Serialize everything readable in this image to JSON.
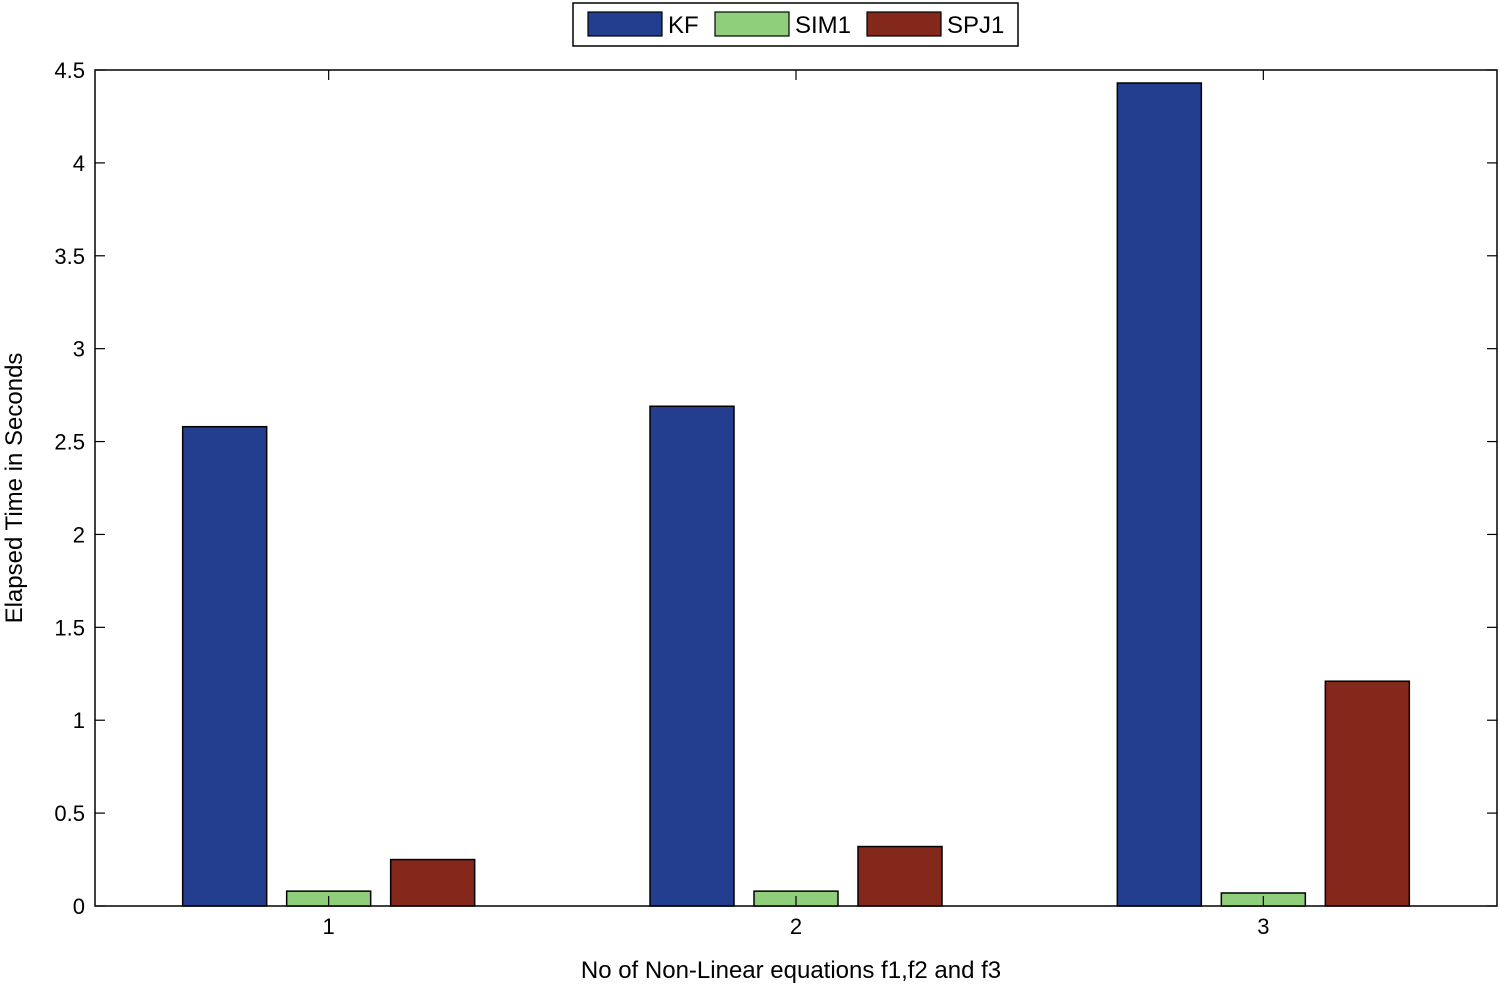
{
  "chart_data": {
    "type": "bar",
    "title": "",
    "xlabel": "No of Non-Linear equations f1,f2 and f3",
    "ylabel": "Elapsed Time in Seconds",
    "categories": [
      "1",
      "2",
      "3"
    ],
    "series": [
      {
        "name": "KF",
        "color": "#243e8f",
        "values": [
          2.58,
          2.69,
          4.43
        ]
      },
      {
        "name": "SIM1",
        "color": "#8fce7a",
        "values": [
          0.08,
          0.08,
          0.07
        ]
      },
      {
        "name": "SPJ1",
        "color": "#84281c",
        "values": [
          0.25,
          0.32,
          1.21
        ]
      }
    ],
    "ylim": [
      0,
      4.5
    ],
    "yticks": [
      0,
      0.5,
      1,
      1.5,
      2,
      2.5,
      3,
      3.5,
      4,
      4.5
    ],
    "ytick_labels": [
      "0",
      "0.5",
      "1",
      "1.5",
      "2",
      "2.5",
      "3",
      "3.5",
      "4",
      "4.5"
    ],
    "grid": false,
    "legend_position": "top-center",
    "legend_orientation": "horizontal"
  }
}
